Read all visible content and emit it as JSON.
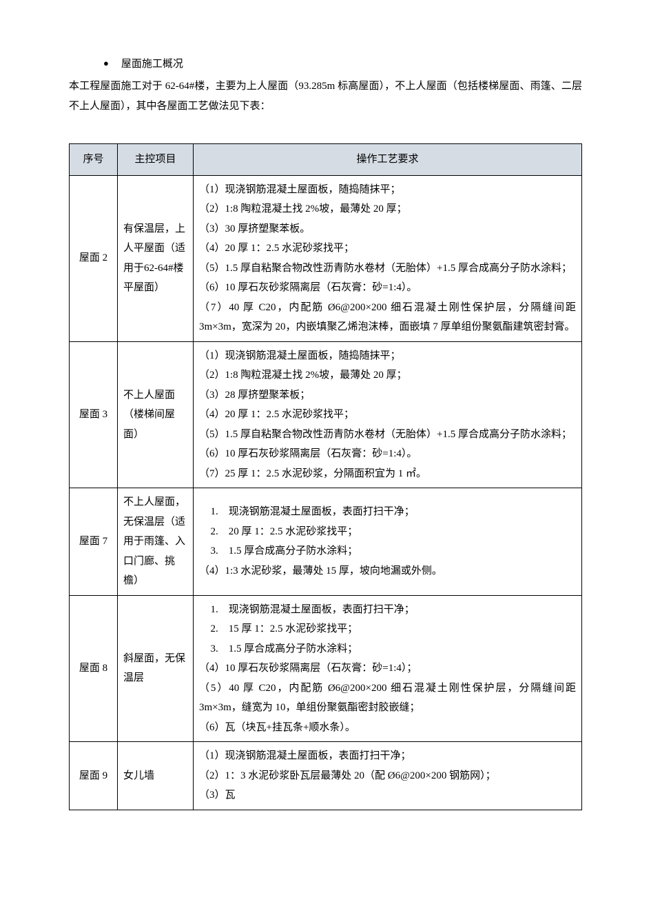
{
  "heading": {
    "bullet": "●",
    "title": "屋面施工概况"
  },
  "intro": "本工程屋面施工对于 62-64#楼，主要为上人屋面（93.285m 标高屋面），不上人屋面（包括楼梯屋面、雨篷、二层不上人屋面），其中各屋面工艺做法见下表：",
  "table": {
    "header_bg": "#d5dce4",
    "border_color": "#000000",
    "columns": [
      "序号",
      "主控项目",
      "操作工艺要求"
    ],
    "rows": [
      {
        "seq": "屋面 2",
        "item": "有保温层，上人平屋面（适用于62-64#楼平屋面）",
        "req": [
          {
            "t": "p",
            "v": "（1）现浇钢筋混凝土屋面板，随捣随抹平；"
          },
          {
            "t": "p",
            "v": "（2）1:8 陶粒混凝土找 2%坡，最薄处 20 厚；"
          },
          {
            "t": "p",
            "v": "（3）30 厚挤塑聚苯板。"
          },
          {
            "t": "p",
            "v": "（4）20 厚 1：2.5 水泥砂浆找平；"
          },
          {
            "t": "p",
            "v": "（5）1.5 厚自粘聚合物改性沥青防水卷材（无胎体）+1.5 厚合成高分子防水涂料；"
          },
          {
            "t": "p",
            "v": "（6）10 厚石灰砂浆隔离层（石灰膏：砂=1:4）。"
          },
          {
            "t": "p",
            "v": "（7）40 厚 C20，内配筋 Ø6@200×200 细石混凝土刚性保护层，分隔缝间距 3m×3m，宽深为 20，内嵌填聚乙烯泡沫棒，面嵌填 7 厚单组份聚氨酯建筑密封膏。"
          }
        ]
      },
      {
        "seq": "屋面 3",
        "item": "不上人屋面（楼梯间屋面）",
        "req": [
          {
            "t": "p",
            "v": "（1）现浇钢筋混凝土屋面板，随捣随抹平；"
          },
          {
            "t": "p",
            "v": "（2）1:8 陶粒混凝土找 2%坡，最薄处 20 厚；"
          },
          {
            "t": "p",
            "v": "（3）28 厚挤塑聚苯板；"
          },
          {
            "t": "p",
            "v": "（4）20 厚 1：2.5 水泥砂浆找平；"
          },
          {
            "t": "p",
            "v": "（5）1.5 厚自粘聚合物改性沥青防水卷材（无胎体）+1.5 厚合成高分子防水涂料；"
          },
          {
            "t": "p",
            "v": "（6）10 厚石灰砂浆隔离层（石灰膏：砂=1:4）。"
          },
          {
            "t": "p",
            "v": "（7）25 厚 1：2.5 水泥砂浆，分隔面积宜为 1 ㎡。"
          }
        ]
      },
      {
        "seq": "屋面 7",
        "item": "不上人屋面，无保温层（适用于雨篷、入口门廊、挑檐）",
        "req": [
          {
            "t": "ol",
            "v": "1.　现浇钢筋混凝土屋面板，表面打扫干净；"
          },
          {
            "t": "ol",
            "v": "2.　20 厚 1：2.5 水泥砂浆找平；"
          },
          {
            "t": "ol",
            "v": "3.　1.5 厚合成高分子防水涂料；"
          },
          {
            "t": "p",
            "v": "（4）1:3 水泥砂浆，最薄处 15 厚，坡向地漏或外侧。"
          }
        ]
      },
      {
        "seq": "屋面 8",
        "item": "斜屋面，无保温层",
        "req": [
          {
            "t": "ol",
            "v": "1.　现浇钢筋混凝土屋面板，表面打扫干净；"
          },
          {
            "t": "ol",
            "v": "2.　15 厚 1：2.5 水泥砂浆找平；"
          },
          {
            "t": "ol",
            "v": "3.　1.5 厚合成高分子防水涂料；"
          },
          {
            "t": "p",
            "v": "（4）10 厚石灰砂浆隔离层（石灰膏：砂=1:4）；"
          },
          {
            "t": "p",
            "v": "（5）40 厚 C20，内配筋 Ø6@200×200 细石混凝土刚性保护层，分隔缝间距 3m×3m，缝宽为 10，单组份聚氨酯密封胶嵌缝；"
          },
          {
            "t": "p",
            "v": "（6）瓦（块瓦+挂瓦条+顺水条）。"
          }
        ]
      },
      {
        "seq": "屋面 9",
        "item": "女儿墙",
        "req": [
          {
            "t": "p",
            "v": "（1）现浇钢筋混凝土屋面板，表面打扫干净；"
          },
          {
            "t": "p",
            "v": "（2）1：3 水泥砂浆卧瓦层最薄处 20（配 Ø6@200×200 钢筋网）；"
          },
          {
            "t": "p",
            "v": "（3）瓦"
          }
        ]
      }
    ]
  }
}
